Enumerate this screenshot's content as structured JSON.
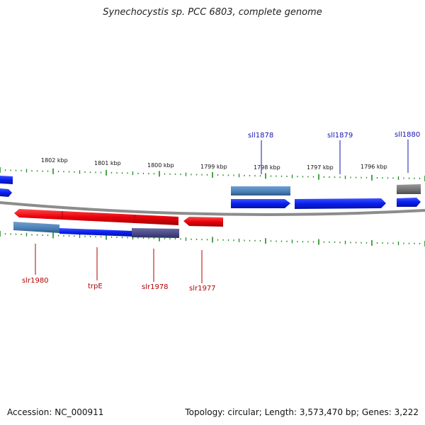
{
  "title": "Synechocystis sp. PCC 6803, complete genome",
  "footer": {
    "accession": "Accession: NC_000911",
    "summary": "Topology: circular; Length: 3,573,470 bp; Genes: 3,222"
  },
  "scale": {
    "labels": [
      "1802 kbp",
      "1801 kbp",
      "1800 kbp",
      "1799 kbp",
      "1798 kbp",
      "1797 kbp",
      "1796 kbp"
    ]
  },
  "genes": {
    "upper_labels": [
      "sll1878",
      "sll1879",
      "sll1880"
    ],
    "lower_labels": [
      "slr1980",
      "trpE",
      "slr1978",
      "slr1977"
    ]
  },
  "colors": {
    "forward_strand": "#e8000b",
    "reverse_strand": "#0a1ef0",
    "feature_steel": "#4a7fb5",
    "feature_navy": "#474785",
    "feature_gray": "#707070",
    "tick_green": "#1e8c1e",
    "label_blue": "#1414b4",
    "label_red": "#b40000",
    "backbone": "#8c8c8c"
  }
}
